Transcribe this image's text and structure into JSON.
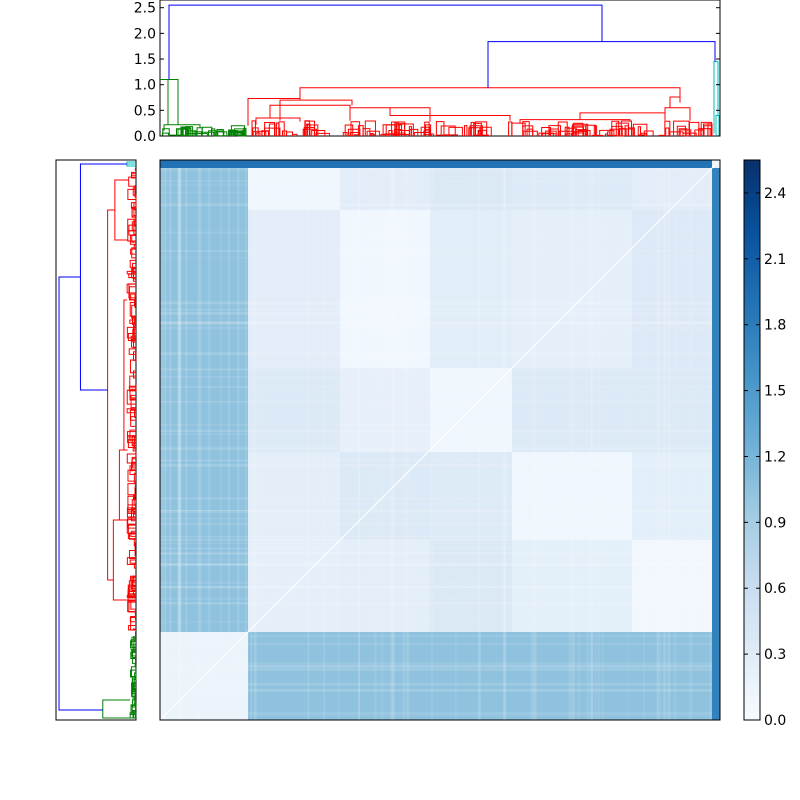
{
  "chart_data": [
    {
      "type": "dendrogram",
      "orientation": "top",
      "y_ticks": [
        "0.0",
        "0.5",
        "1.0",
        "1.5",
        "2.0",
        "2.5"
      ],
      "ylim": [
        0,
        2.65
      ],
      "colors": {
        "root": "#0000ff",
        "cluster_a": "#008000",
        "cluster_b": "#ff0000",
        "cluster_c": "#00bfbf"
      },
      "leaf_count": 300,
      "top_merges": [
        {
          "height": 2.55,
          "left": "cluster_a",
          "right": "rest",
          "color": "#0000ff"
        },
        {
          "height": 1.84,
          "left": "cluster_b",
          "right": "cluster_c",
          "color": "#0000ff"
        },
        {
          "height": 1.1,
          "cluster": "cluster_a",
          "color": "#008000"
        },
        {
          "height": 0.94,
          "cluster": "cluster_b",
          "color": "#ff0000"
        }
      ]
    },
    {
      "type": "dendrogram",
      "orientation": "left",
      "colors": {
        "root": "#0000ff",
        "cluster_a": "#00bfbf",
        "cluster_b": "#ff0000",
        "cluster_c": "#008000"
      },
      "leaf_count": 300
    },
    {
      "type": "heatmap",
      "colormap": "Blues",
      "rows": 300,
      "cols": 300,
      "row_clusters": [
        "cluster_c",
        "cluster_b",
        "cluster_a"
      ],
      "col_clusters": [
        "cluster_a",
        "cluster_b",
        "cluster_c"
      ],
      "value_range": [
        0,
        2.55
      ],
      "colorbar": {
        "ticks": [
          "0.0",
          "0.3",
          "0.6",
          "0.9",
          "1.2",
          "1.5",
          "1.8",
          "2.1",
          "2.4"
        ],
        "range": [
          0,
          2.55
        ]
      }
    }
  ]
}
